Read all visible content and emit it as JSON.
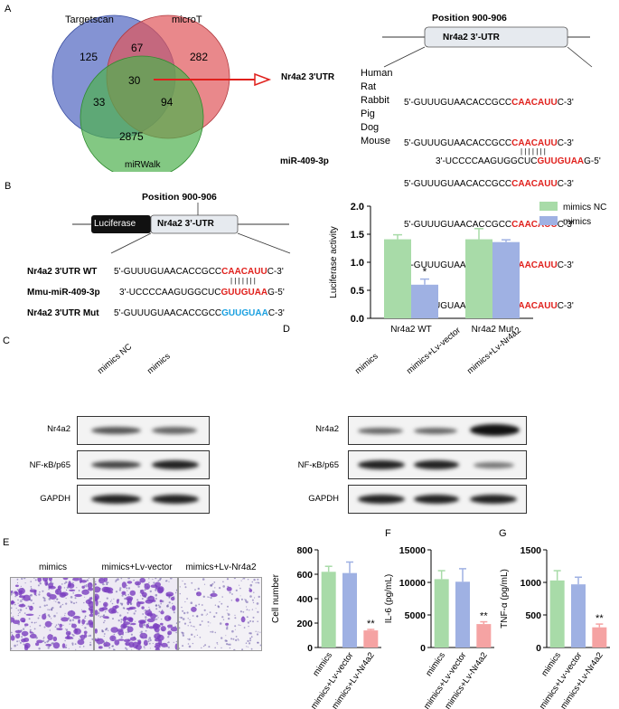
{
  "panels": {
    "A": "A",
    "B": "B",
    "C": "C",
    "D": "D",
    "E": "E",
    "F": "F",
    "G": "G"
  },
  "venn": {
    "sets": [
      {
        "name": "Targetscan",
        "color": "#5b6fc4"
      },
      {
        "name": "microT",
        "color": "#e0555a"
      },
      {
        "name": "miRWalk",
        "color": "#4fb04f"
      }
    ],
    "counts": {
      "t_only": "125",
      "m_only": "282",
      "w_only": "2875",
      "tm": "67",
      "tw": "33",
      "mw": "94",
      "all": "30"
    }
  },
  "panelA": {
    "target_label": "Nr4a2 3'UTR",
    "mirna_label": "miR-409-3p",
    "position_title": "Position 900-906",
    "utr_box": "Nr4a2 3’-UTR",
    "species": [
      {
        "name": "Human",
        "pre": "5'-GUUUGUAACACCGCC",
        "site": "CAACAUU",
        "post": "C-3'"
      },
      {
        "name": "Rat",
        "pre": "5'-GUUUGUAACACCGCC",
        "site": "CAACAUU",
        "post": "C-3'"
      },
      {
        "name": "Rabbit",
        "pre": "5'-GUUUGUAACACCGCC",
        "site": "CAACAUU",
        "post": "C-3'"
      },
      {
        "name": "Pig",
        "pre": "5'-GUUUGUAACACCGCC",
        "site": "CAACAUU",
        "post": "C-3'"
      },
      {
        "name": "Dog",
        "pre": "5'-GUUUGUAACACCGCC",
        "site": "CAACAUU",
        "post": "C-3'"
      },
      {
        "name": "Mouse",
        "pre": "5'-GUUUGUAACACCGCC",
        "site": "CAACAUU",
        "post": "C-3'"
      }
    ],
    "mirna_seq": {
      "pre": "3'-UCCCCAAGUGGCUC",
      "site": "GUUGUAA",
      "post": "G-5'"
    },
    "pairing": "| | | | | | |"
  },
  "panelB": {
    "position_title": "Position 900-906",
    "luc_box": "Luciferase",
    "utr_box": "Nr4a2 3’-UTR",
    "rows": [
      {
        "label": "Nr4a2 3'UTR WT",
        "pre": "5'-GUUUGUAACACCGCC",
        "site": "CAACAUU",
        "post": "C-3'",
        "color": "red"
      },
      {
        "label": "Mmu-miR-409-3p",
        "pre": "3'-UCCCCAAGUGGCUC",
        "site": "GUUGUAA",
        "post": "G-5'",
        "color": "red"
      },
      {
        "label": "Nr4a2 3'UTR Mut",
        "pre": "5'-GUUUGUAACACCGCC",
        "site": "GUUGUAA",
        "post": "C-3'",
        "color": "blue"
      }
    ],
    "pairing": "| | | | | | |"
  },
  "chart_data": [
    {
      "type": "bar",
      "id": "luciferase",
      "categories": [
        "Nr4a2 WT",
        "Nr4a2 Mut"
      ],
      "series": [
        {
          "name": "mimics NC",
          "color": "#a8dba8",
          "values": [
            1.41,
            1.41
          ],
          "errors": [
            0.08,
            0.19
          ]
        },
        {
          "name": "mimics",
          "color": "#9fb1e3",
          "values": [
            0.6,
            1.36
          ],
          "errors": [
            0.1,
            0.04
          ]
        }
      ],
      "ylabel": "Luciferase activity",
      "ylim": [
        0,
        2.0
      ],
      "yticks": [
        "0.0",
        "0.5",
        "1.0",
        "1.5",
        "2.0"
      ],
      "annotations": [
        "*"
      ],
      "legend": "top-right"
    },
    {
      "type": "bar",
      "id": "cell_number",
      "categories": [
        "mimics",
        "mimics+Lv-vector",
        "mimics+Lv-Nr4a2"
      ],
      "values": [
        620,
        610,
        140
      ],
      "errors": [
        45,
        90,
        8
      ],
      "colors": [
        "#a8dba8",
        "#9fb1e3",
        "#f5a3a3"
      ],
      "ylabel": "Cell number",
      "ylim": [
        0,
        800
      ],
      "yticks": [
        "0",
        "200",
        "400",
        "600",
        "800"
      ],
      "annotations": [
        "**"
      ]
    },
    {
      "type": "bar",
      "id": "il6",
      "categories": [
        "mimics",
        "mimics+Lv-vector",
        "mimics+Lv-Nr4a2"
      ],
      "values": [
        10500,
        10100,
        3600
      ],
      "errors": [
        1300,
        2000,
        350
      ],
      "colors": [
        "#a8dba8",
        "#9fb1e3",
        "#f5a3a3"
      ],
      "ylabel": "IL-6 (pg/mL)",
      "ylim": [
        0,
        15000
      ],
      "yticks": [
        "0",
        "5000",
        "10000",
        "15000"
      ],
      "annotations": [
        "**"
      ]
    },
    {
      "type": "bar",
      "id": "tnfa",
      "categories": [
        "mimics",
        "mimics+Lv-vector",
        "mimics+Lv-Nr4a2"
      ],
      "values": [
        1030,
        970,
        310
      ],
      "errors": [
        150,
        110,
        50
      ],
      "colors": [
        "#a8dba8",
        "#9fb1e3",
        "#f5a3a3"
      ],
      "ylabel": "TNF-α (pg/mL)",
      "ylim": [
        0,
        1500
      ],
      "yticks": [
        "0",
        "500",
        "1000",
        "1500"
      ],
      "annotations": [
        "**"
      ]
    }
  ],
  "panelC": {
    "columns": [
      "mimics NC",
      "mimics"
    ],
    "rows": [
      "Nr4a2",
      "NF-κB/p65",
      "GAPDH"
    ]
  },
  "panelD": {
    "columns": [
      "mimics",
      "mimics+Lv-vector",
      "mimics+Lv-Nr4a2"
    ],
    "rows": [
      "Nr4a2",
      "NF-κB/p65",
      "GAPDH"
    ]
  },
  "panelE": {
    "images": [
      "mimics",
      "mimics+Lv-vector",
      "mimics+Lv-Nr4a2"
    ]
  }
}
